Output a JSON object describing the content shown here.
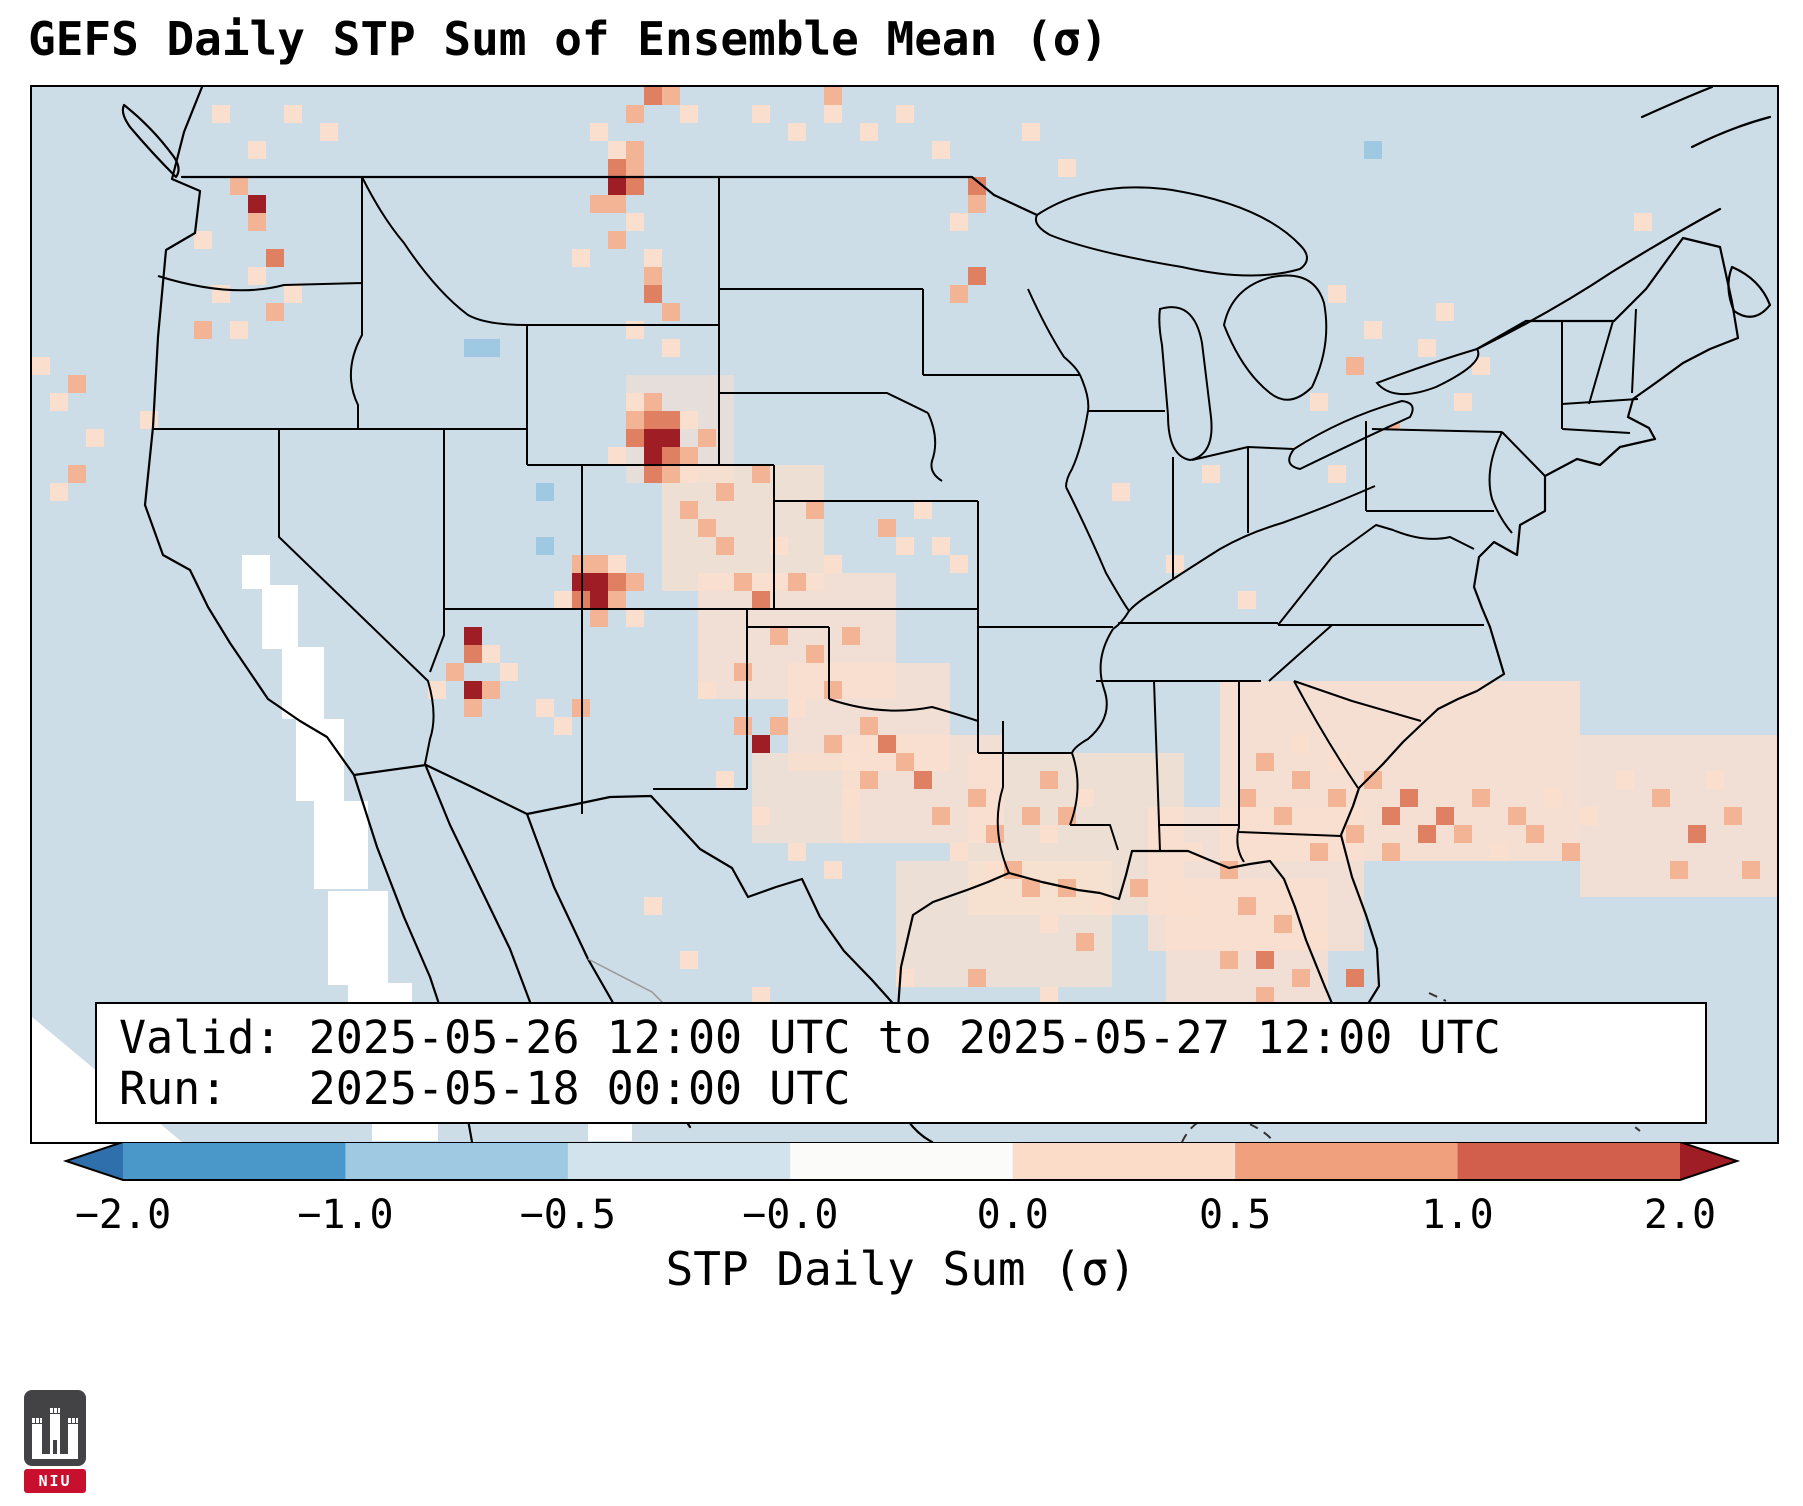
{
  "title": "GEFS Daily STP Sum of Ensemble Mean (σ)",
  "info_box": {
    "line1": "Valid: 2025-05-26 12:00 UTC to 2025-05-27 12:00 UTC",
    "line2": "Run:   2025-05-18 00:00 UTC"
  },
  "colorbar": {
    "label": "STP Daily Sum (σ)",
    "ticks": [
      "−2.0",
      "−1.0",
      "−0.5",
      "−0.0",
      "0.0",
      "0.5",
      "1.0",
      "2.0"
    ],
    "segments": [
      "#4a97c9",
      "#9fc9e2",
      "#d3e3ee",
      "#fbfbf9",
      "#fadcc8",
      "#f1a07e",
      "#d25f4b"
    ],
    "arrow_left": "#2e6fac",
    "arrow_right": "#9f1d24"
  },
  "logo": {
    "text": "NIU"
  },
  "map": {
    "background": "#ccdde8",
    "grid": 18,
    "colors": {
      "p1": "#fadfce",
      "p2": "#f3b495",
      "p3": "#e08063",
      "p4": "#9f1d24",
      "b2": "#9fc9e2",
      "w": "#ffffff"
    },
    "washes": [
      [
        33,
        16,
        6,
        6,
        "p1",
        0.55
      ],
      [
        35,
        21,
        9,
        7,
        "p1",
        0.75
      ],
      [
        37,
        27,
        11,
        7,
        "p1",
        0.8
      ],
      [
        42,
        32,
        9,
        6,
        "p1",
        0.8
      ],
      [
        45,
        36,
        9,
        6,
        "p1",
        0.8
      ],
      [
        52,
        37,
        12,
        9,
        "p1",
        0.75
      ],
      [
        62,
        40,
        12,
        8,
        "p1",
        0.8
      ],
      [
        66,
        33,
        20,
        10,
        "p1",
        0.85
      ],
      [
        86,
        36,
        11,
        9,
        "p1",
        0.8
      ],
      [
        63,
        44,
        9,
        9,
        "p1",
        0.8
      ],
      [
        48,
        43,
        12,
        7,
        "p1",
        0.7
      ],
      [
        40,
        37,
        6,
        5,
        "p1",
        0.7
      ]
    ],
    "cells": [
      [
        10,
        1,
        "p1"
      ],
      [
        14,
        1,
        "p1"
      ],
      [
        12,
        3,
        "p1"
      ],
      [
        16,
        2,
        "p1"
      ],
      [
        11,
        5,
        "p2"
      ],
      [
        12,
        6,
        "p4"
      ],
      [
        12,
        7,
        "p2"
      ],
      [
        9,
        8,
        "p1"
      ],
      [
        13,
        9,
        "p3"
      ],
      [
        12,
        10,
        "p1"
      ],
      [
        14,
        11,
        "p1"
      ],
      [
        10,
        11,
        "p1"
      ],
      [
        9,
        13,
        "p2"
      ],
      [
        11,
        13,
        "p1"
      ],
      [
        13,
        12,
        "p2"
      ],
      [
        0,
        15,
        "p1"
      ],
      [
        2,
        16,
        "p2"
      ],
      [
        1,
        17,
        "p1"
      ],
      [
        3,
        19,
        "p1"
      ],
      [
        6,
        18,
        "p1"
      ],
      [
        2,
        21,
        "p2"
      ],
      [
        1,
        22,
        "p1"
      ],
      [
        34,
        0,
        "p3"
      ],
      [
        35,
        0,
        "p2"
      ],
      [
        33,
        1,
        "p2"
      ],
      [
        36,
        1,
        "p1"
      ],
      [
        31,
        2,
        "p1"
      ],
      [
        32,
        3,
        "p1"
      ],
      [
        33,
        3,
        "p2"
      ],
      [
        32,
        4,
        "p3"
      ],
      [
        33,
        4,
        "p2"
      ],
      [
        32,
        5,
        "p4"
      ],
      [
        33,
        5,
        "p3"
      ],
      [
        31,
        6,
        "p2"
      ],
      [
        32,
        6,
        "p2"
      ],
      [
        33,
        7,
        "p1"
      ],
      [
        32,
        8,
        "p2"
      ],
      [
        30,
        9,
        "p1"
      ],
      [
        34,
        9,
        "p1"
      ],
      [
        34,
        10,
        "p2"
      ],
      [
        34,
        11,
        "p3"
      ],
      [
        35,
        12,
        "p2"
      ],
      [
        33,
        13,
        "p1"
      ],
      [
        35,
        14,
        "p1"
      ],
      [
        40,
        1,
        "p1"
      ],
      [
        42,
        2,
        "p1"
      ],
      [
        44,
        0,
        "p2"
      ],
      [
        44,
        1,
        "p1"
      ],
      [
        46,
        2,
        "p1"
      ],
      [
        48,
        1,
        "p1"
      ],
      [
        50,
        3,
        "p1"
      ],
      [
        52,
        5,
        "p3"
      ],
      [
        52,
        6,
        "p2"
      ],
      [
        51,
        7,
        "p1"
      ],
      [
        55,
        2,
        "p1"
      ],
      [
        52,
        10,
        "p3"
      ],
      [
        51,
        11,
        "p2"
      ],
      [
        57,
        4,
        "p1"
      ],
      [
        33,
        17,
        "p1"
      ],
      [
        34,
        17,
        "p2"
      ],
      [
        34,
        18,
        "p3"
      ],
      [
        33,
        18,
        "p2"
      ],
      [
        35,
        18,
        "p3"
      ],
      [
        34,
        19,
        "p4"
      ],
      [
        35,
        19,
        "p4"
      ],
      [
        33,
        19,
        "p3"
      ],
      [
        34,
        20,
        "p4"
      ],
      [
        35,
        20,
        "p3"
      ],
      [
        36,
        20,
        "p2"
      ],
      [
        34,
        21,
        "p3"
      ],
      [
        35,
        21,
        "p2"
      ],
      [
        36,
        18,
        "p1"
      ],
      [
        37,
        19,
        "p2"
      ],
      [
        36,
        21,
        "p1"
      ],
      [
        32,
        20,
        "p1"
      ],
      [
        24,
        14,
        "b2"
      ],
      [
        25,
        14,
        "b2"
      ],
      [
        28,
        22,
        "b2"
      ],
      [
        28,
        25,
        "b2"
      ],
      [
        74,
        3,
        "b2"
      ],
      [
        30,
        26,
        "p2"
      ],
      [
        31,
        26,
        "p2"
      ],
      [
        32,
        26,
        "p1"
      ],
      [
        30,
        27,
        "p4"
      ],
      [
        31,
        27,
        "p4"
      ],
      [
        32,
        27,
        "p3"
      ],
      [
        30,
        28,
        "p3"
      ],
      [
        31,
        28,
        "p4"
      ],
      [
        32,
        28,
        "p2"
      ],
      [
        33,
        27,
        "p2"
      ],
      [
        29,
        28,
        "p1"
      ],
      [
        31,
        29,
        "p2"
      ],
      [
        33,
        29,
        "p1"
      ],
      [
        24,
        30,
        "p4"
      ],
      [
        24,
        31,
        "p3"
      ],
      [
        25,
        31,
        "p1"
      ],
      [
        23,
        32,
        "p2"
      ],
      [
        24,
        33,
        "p4"
      ],
      [
        25,
        33,
        "p2"
      ],
      [
        24,
        34,
        "p2"
      ],
      [
        26,
        32,
        "p1"
      ],
      [
        22,
        33,
        "p1"
      ],
      [
        28,
        34,
        "p1"
      ],
      [
        30,
        34,
        "p2"
      ],
      [
        29,
        35,
        "p1"
      ],
      [
        38,
        22,
        "p2"
      ],
      [
        40,
        21,
        "p2"
      ],
      [
        37,
        24,
        "p2"
      ],
      [
        43,
        23,
        "p2"
      ],
      [
        41,
        25,
        "p1"
      ],
      [
        39,
        27,
        "p2"
      ],
      [
        40,
        28,
        "p3"
      ],
      [
        36,
        23,
        "p2"
      ],
      [
        38,
        25,
        "p2"
      ],
      [
        42,
        27,
        "p2"
      ],
      [
        44,
        26,
        "p1"
      ],
      [
        41,
        30,
        "p2"
      ],
      [
        43,
        31,
        "p2"
      ],
      [
        39,
        32,
        "p2"
      ],
      [
        37,
        33,
        "p1"
      ],
      [
        45,
        30,
        "p2"
      ],
      [
        44,
        33,
        "p2"
      ],
      [
        42,
        34,
        "p1"
      ],
      [
        46,
        35,
        "p2"
      ],
      [
        44,
        36,
        "p2"
      ],
      [
        47,
        36,
        "p3"
      ],
      [
        48,
        37,
        "p2"
      ],
      [
        46,
        38,
        "p2"
      ],
      [
        45,
        39,
        "p1"
      ],
      [
        49,
        38,
        "p3"
      ],
      [
        50,
        40,
        "p2"
      ],
      [
        52,
        39,
        "p2"
      ],
      [
        53,
        41,
        "p2"
      ],
      [
        55,
        40,
        "p2"
      ],
      [
        56,
        41,
        "p1"
      ],
      [
        51,
        42,
        "p1"
      ],
      [
        40,
        36,
        "p4"
      ],
      [
        39,
        35,
        "p2"
      ],
      [
        41,
        35,
        "p2"
      ],
      [
        47,
        24,
        "p2"
      ],
      [
        48,
        25,
        "p1"
      ],
      [
        50,
        25,
        "p1"
      ],
      [
        51,
        26,
        "p1"
      ],
      [
        49,
        23,
        "p1"
      ],
      [
        54,
        43,
        "p2"
      ],
      [
        57,
        44,
        "p2"
      ],
      [
        59,
        45,
        "p1"
      ],
      [
        61,
        44,
        "p2"
      ],
      [
        56,
        46,
        "p1"
      ],
      [
        58,
        47,
        "p2"
      ],
      [
        55,
        44,
        "p2"
      ],
      [
        53,
        43,
        "p1"
      ],
      [
        56,
        38,
        "p2"
      ],
      [
        58,
        39,
        "p1"
      ],
      [
        57,
        40,
        "p2"
      ],
      [
        64,
        42,
        "p1"
      ],
      [
        66,
        43,
        "p2"
      ],
      [
        64,
        45,
        "p1"
      ],
      [
        67,
        45,
        "p2"
      ],
      [
        69,
        46,
        "p2"
      ],
      [
        68,
        48,
        "p3"
      ],
      [
        66,
        48,
        "p2"
      ],
      [
        70,
        49,
        "p2"
      ],
      [
        73,
        49,
        "p3"
      ],
      [
        71,
        47,
        "p1"
      ],
      [
        68,
        50,
        "p2"
      ],
      [
        66,
        51,
        "p1"
      ],
      [
        72,
        51,
        "p2"
      ],
      [
        74,
        52,
        "p1"
      ],
      [
        69,
        52,
        "p1"
      ],
      [
        70,
        38,
        "p2"
      ],
      [
        72,
        39,
        "p2"
      ],
      [
        74,
        38,
        "p2"
      ],
      [
        75,
        40,
        "p3"
      ],
      [
        76,
        39,
        "p3"
      ],
      [
        78,
        40,
        "p3"
      ],
      [
        79,
        41,
        "p2"
      ],
      [
        77,
        41,
        "p3"
      ],
      [
        80,
        39,
        "p2"
      ],
      [
        82,
        40,
        "p2"
      ],
      [
        73,
        41,
        "p2"
      ],
      [
        71,
        42,
        "p2"
      ],
      [
        69,
        40,
        "p2"
      ],
      [
        75,
        42,
        "p2"
      ],
      [
        81,
        42,
        "p1"
      ],
      [
        83,
        41,
        "p2"
      ],
      [
        84,
        39,
        "p1"
      ],
      [
        85,
        42,
        "p2"
      ],
      [
        86,
        40,
        "p1"
      ],
      [
        88,
        38,
        "p1"
      ],
      [
        90,
        39,
        "p2"
      ],
      [
        92,
        41,
        "p3"
      ],
      [
        94,
        40,
        "p2"
      ],
      [
        91,
        43,
        "p2"
      ],
      [
        95,
        43,
        "p2"
      ],
      [
        93,
        38,
        "p1"
      ],
      [
        68,
        37,
        "p2"
      ],
      [
        70,
        36,
        "p1"
      ],
      [
        67,
        39,
        "p2"
      ],
      [
        72,
        37,
        "p1"
      ],
      [
        72,
        11,
        "p1"
      ],
      [
        74,
        13,
        "p1"
      ],
      [
        73,
        15,
        "p2"
      ],
      [
        76,
        16,
        "p1"
      ],
      [
        71,
        17,
        "p1"
      ],
      [
        75,
        18,
        "p2"
      ],
      [
        77,
        14,
        "p1"
      ],
      [
        79,
        17,
        "p1"
      ],
      [
        70,
        20,
        "p1"
      ],
      [
        72,
        21,
        "p1"
      ],
      [
        78,
        12,
        "p1"
      ],
      [
        80,
        15,
        "p1"
      ],
      [
        60,
        22,
        "p1"
      ],
      [
        65,
        21,
        "p1"
      ],
      [
        63,
        26,
        "p1"
      ],
      [
        67,
        28,
        "p1"
      ],
      [
        89,
        7,
        "p1"
      ],
      [
        36,
        48,
        "p1"
      ],
      [
        40,
        50,
        "p1"
      ],
      [
        48,
        49,
        "p1"
      ],
      [
        52,
        49,
        "p2"
      ],
      [
        56,
        50,
        "p1"
      ],
      [
        44,
        43,
        "p1"
      ],
      [
        42,
        42,
        "p1"
      ],
      [
        38,
        38,
        "p1"
      ],
      [
        40,
        40,
        "p1"
      ],
      [
        60,
        51,
        "p1"
      ],
      [
        34,
        45,
        "p1"
      ]
    ],
    "masks": [
      [
        230,
        498,
        36,
        64
      ],
      [
        250,
        560,
        42,
        72
      ],
      [
        264,
        632,
        48,
        82
      ],
      [
        282,
        714,
        54,
        88
      ],
      [
        296,
        804,
        60,
        94
      ],
      [
        316,
        896,
        64,
        100
      ],
      [
        340,
        988,
        66,
        66
      ],
      [
        210,
        468,
        28,
        34
      ],
      [
        556,
        1028,
        44,
        26
      ]
    ]
  }
}
